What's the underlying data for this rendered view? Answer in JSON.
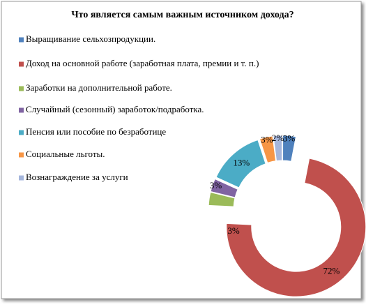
{
  "chart_data": {
    "type": "donut",
    "title": "Что  является самым важным источником  дохода?",
    "categories": [
      "Выращивание сельхозпродукции.",
      "Доход на основной работе (заработная плата, премии и т. п.)",
      "Заработки на дополнительной работе.",
      "Случайный (сезонный) заработок/подработка.",
      "Пенсия или пособие по безработице",
      "Социальные льготы.",
      "Вознаграждение за услуги"
    ],
    "values": [
      3,
      72,
      3,
      3,
      13,
      3,
      2
    ],
    "value_labels": [
      "3%",
      "72%",
      "3%",
      "3%",
      "13%",
      "3%",
      "2%"
    ],
    "colors": [
      "#4f81bd",
      "#c0504d",
      "#9bbb59",
      "#8064a2",
      "#4bacc6",
      "#f79646",
      "#a5b6dc"
    ],
    "legend": "left"
  }
}
